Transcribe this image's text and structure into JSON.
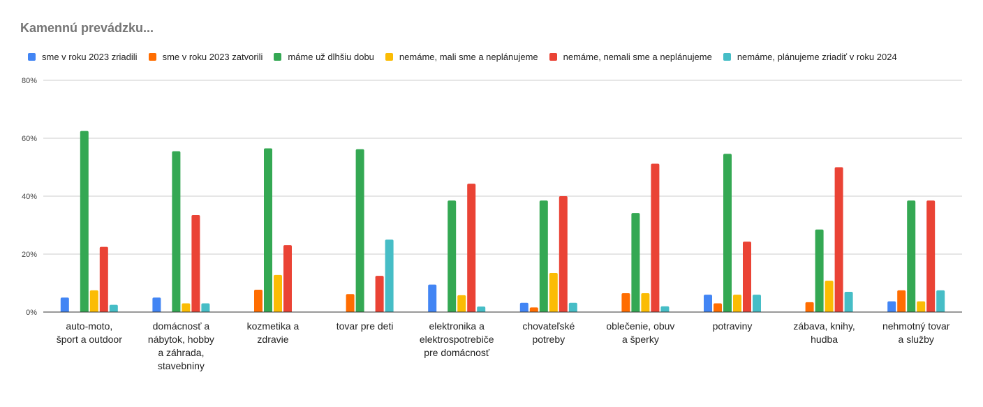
{
  "chart_data": {
    "type": "bar",
    "title": "Kamennú prevádzku...",
    "xlabel": "",
    "ylabel": "",
    "ylim": [
      0,
      80
    ],
    "yticks": [
      "0%",
      "20%",
      "40%",
      "60%",
      "80%"
    ],
    "ytick_values": [
      0,
      20,
      40,
      60,
      80
    ],
    "grid": true,
    "legend_position": "top-left",
    "categories": [
      [
        "auto-moto,",
        "šport a outdoor"
      ],
      [
        "domácnosť a",
        "nábytok, hobby",
        "a záhrada,",
        "stavebniny"
      ],
      [
        "kozmetika a",
        "zdravie"
      ],
      [
        "tovar pre deti"
      ],
      [
        "elektronika a",
        "elektrospotrebiče",
        "pre domácnosť"
      ],
      [
        "chovateľské",
        "potreby"
      ],
      [
        "oblečenie, obuv",
        "a šperky"
      ],
      [
        "potraviny"
      ],
      [
        "zábava, knihy,",
        "hudba"
      ],
      [
        "nehmotný tovar",
        "a služby"
      ]
    ],
    "series": [
      {
        "name": "sme v roku 2023 zriadili",
        "color": "#4285F4",
        "values": [
          5.0,
          5.0,
          0,
          0,
          9.5,
          3.2,
          0,
          6.0,
          0,
          3.7
        ]
      },
      {
        "name": "sme v roku 2023 zatvorili",
        "color": "#FF6D01",
        "values": [
          0,
          0,
          7.7,
          6.2,
          0,
          1.6,
          6.5,
          3.0,
          3.4,
          7.5
        ]
      },
      {
        "name": "máme už dlhšiu dobu",
        "color": "#34A853",
        "values": [
          62.5,
          55.5,
          56.5,
          56.2,
          38.5,
          38.5,
          34.2,
          54.6,
          28.5,
          38.5
        ]
      },
      {
        "name": "nemáme, mali sme a neplánujeme",
        "color": "#FBBC04",
        "values": [
          7.5,
          3.0,
          12.8,
          0,
          5.8,
          13.5,
          6.5,
          6.0,
          10.8,
          3.7
        ]
      },
      {
        "name": "nemáme, nemali sme a neplánujeme",
        "color": "#EA4335",
        "values": [
          22.5,
          33.5,
          23.1,
          12.5,
          44.3,
          40.0,
          51.2,
          24.3,
          50.0,
          38.5
        ]
      },
      {
        "name": "nemáme, plánujeme zriadiť v roku 2024",
        "color": "#46BDC6",
        "values": [
          2.5,
          3.0,
          0,
          25.0,
          1.9,
          3.2,
          2.0,
          6.0,
          7.0,
          7.5
        ]
      }
    ]
  }
}
